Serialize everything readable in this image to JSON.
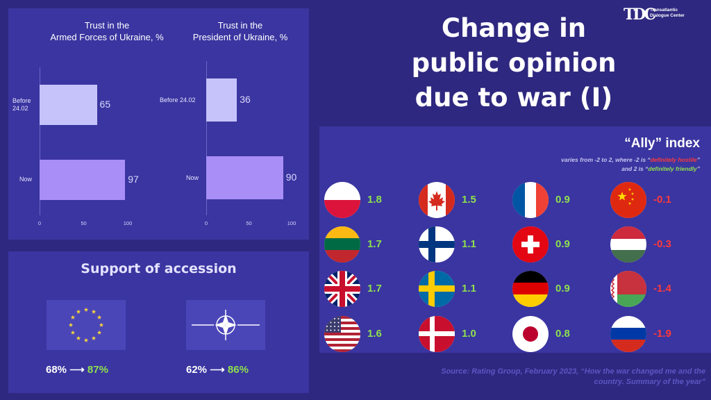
{
  "title": "Change in public opinion due to war (I)",
  "title_lines": [
    "Change in",
    "public opinion",
    "due to war (I)"
  ],
  "logo": {
    "mark": "TDC",
    "line1": "Transatlantic",
    "line2": "Dialogue Center"
  },
  "chart_data": [
    {
      "type": "bar",
      "orientation": "horizontal",
      "title": "Trust in the Armed Forces of Ukraine, %",
      "title_lines": [
        "Trust in the",
        "Armed Forces of Ukraine, %"
      ],
      "categories": [
        "Before 24.02",
        "Now"
      ],
      "category_lines": [
        [
          "Before",
          "24.02"
        ],
        [
          "Now"
        ]
      ],
      "values": [
        65,
        97
      ],
      "xlim": [
        0,
        100
      ],
      "xticks": [
        0,
        50,
        100
      ],
      "colors": [
        "#c6c3fa",
        "#a88ef6"
      ]
    },
    {
      "type": "bar",
      "orientation": "horizontal",
      "title": "Trust in the President of Ukraine, %",
      "title_lines": [
        "Trust in the",
        "President of Ukraine, %"
      ],
      "categories": [
        "Before 24.02",
        "Now"
      ],
      "category_lines": [
        [
          "Before 24.02"
        ],
        [
          "Now"
        ]
      ],
      "values": [
        36,
        90
      ],
      "xlim": [
        0,
        100
      ],
      "xticks": [
        0,
        50,
        100
      ],
      "colors": [
        "#c6c3fa",
        "#a88ef6"
      ]
    }
  ],
  "support": {
    "title": "Support of accession",
    "items": [
      {
        "org": "European Union",
        "icon": "eu-flag-icon",
        "from": "68%",
        "arrow": "⟶",
        "to": "87%"
      },
      {
        "org": "NATO",
        "icon": "nato-flag-icon",
        "from": "62%",
        "arrow": "⟶",
        "to": "86%"
      }
    ]
  },
  "ally": {
    "title": "“Ally” index",
    "desc1_pre": "varies from -2 to 2, where -2 is “",
    "desc1_hi": "definitely hostile",
    "desc1_post": "”",
    "desc2_pre": "and 2 is “",
    "desc2_hi": "definitely friendly",
    "desc2_post": "”",
    "colors": {
      "positive": "#8ee04e",
      "negative": "#ff3a3a"
    },
    "columns": [
      [
        {
          "country": "Poland",
          "icon": "poland-flag-icon",
          "value": "1.8"
        },
        {
          "country": "Lithuania",
          "icon": "lithuania-flag-icon",
          "value": "1.7"
        },
        {
          "country": "United Kingdom",
          "icon": "uk-flag-icon",
          "value": "1.7"
        },
        {
          "country": "United States",
          "icon": "usa-flag-icon",
          "value": "1.6"
        }
      ],
      [
        {
          "country": "Canada",
          "icon": "canada-flag-icon",
          "value": "1.5"
        },
        {
          "country": "Finland",
          "icon": "finland-flag-icon",
          "value": "1.1"
        },
        {
          "country": "Sweden",
          "icon": "sweden-flag-icon",
          "value": "1.1"
        },
        {
          "country": "Denmark",
          "icon": "denmark-flag-icon",
          "value": "1.0"
        }
      ],
      [
        {
          "country": "France",
          "icon": "france-flag-icon",
          "value": "0.9"
        },
        {
          "country": "Switzerland",
          "icon": "switzerland-flag-icon",
          "value": "0.9"
        },
        {
          "country": "Germany",
          "icon": "germany-flag-icon",
          "value": "0.9"
        },
        {
          "country": "Japan",
          "icon": "japan-flag-icon",
          "value": "0.8"
        }
      ],
      [
        {
          "country": "China",
          "icon": "china-flag-icon",
          "value": "-0.1"
        },
        {
          "country": "Hungary",
          "icon": "hungary-flag-icon",
          "value": "-0.3"
        },
        {
          "country": "Belarus",
          "icon": "belarus-flag-icon",
          "value": "-1.4"
        },
        {
          "country": "Russia",
          "icon": "russia-flag-icon",
          "value": "-1.9"
        }
      ]
    ]
  },
  "source_lines": [
    "Source: Rating Group, February 2023, “How the war changed me and the",
    "country. Summary of the year”"
  ]
}
